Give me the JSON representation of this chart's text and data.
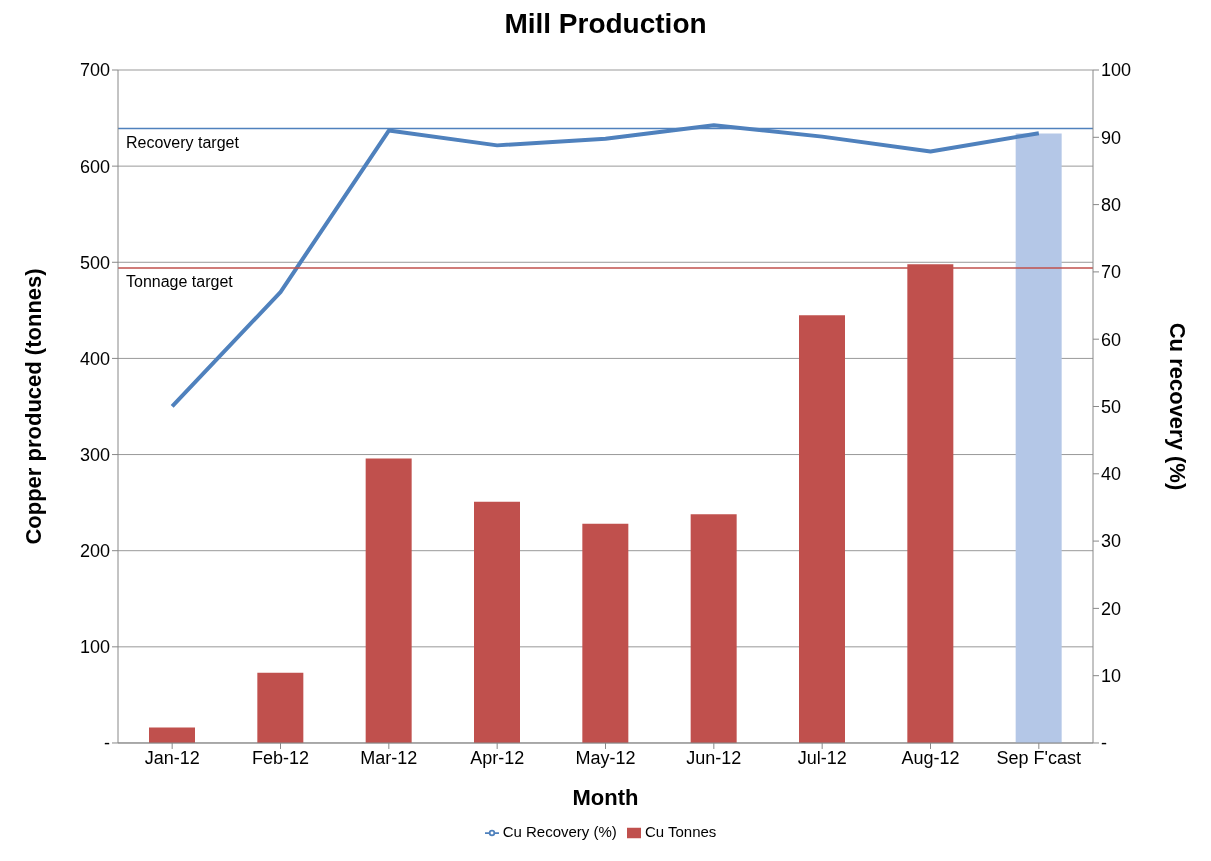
{
  "chart_data": {
    "type": "bar",
    "title": "Mill Production",
    "xlabel": "Month",
    "ylabel": "Copper produced (tonnes)",
    "y2label": "Cu recovery (%)",
    "categories": [
      "Jan-12",
      "Feb-12",
      "Mar-12",
      "Apr-12",
      "May-12",
      "Jun-12",
      "Jul-12",
      "Aug-12",
      "Sep F'cast"
    ],
    "series": [
      {
        "name": "Cu Tonnes",
        "color": "#c0504d",
        "colors": [
          "#c0504d",
          "#c0504d",
          "#c0504d",
          "#c0504d",
          "#c0504d",
          "#c0504d",
          "#c0504d",
          "#c0504d",
          "#b4c7e7"
        ],
        "values": [
          16,
          73,
          296,
          251,
          228,
          238,
          445,
          498,
          634
        ]
      },
      {
        "name": "Cu Recovery (%)",
        "type": "line",
        "axis": "y2",
        "color": "#4f81bd",
        "values": [
          50,
          67,
          91,
          88.8,
          89.8,
          91.8,
          90.1,
          87.9,
          90.6
        ]
      }
    ],
    "ylim": [
      0,
      700
    ],
    "yticks": [
      {
        "value": 0,
        "label": "-"
      },
      100,
      200,
      300,
      400,
      500,
      600,
      700
    ],
    "y2lim": [
      0,
      100
    ],
    "y2ticks": [
      {
        "value": 0,
        "label": "-"
      },
      10,
      20,
      30,
      40,
      50,
      60,
      70,
      80,
      90,
      100
    ],
    "ref_lines": [
      {
        "axis": "y2",
        "value": 91.3,
        "label": "Recovery target",
        "color": "#4f81bd"
      },
      {
        "axis": "y",
        "value": 494,
        "label": "Tonnage target",
        "color": "#c0504d"
      }
    ],
    "grid": "y",
    "legend": "bottom",
    "marker": "none"
  }
}
